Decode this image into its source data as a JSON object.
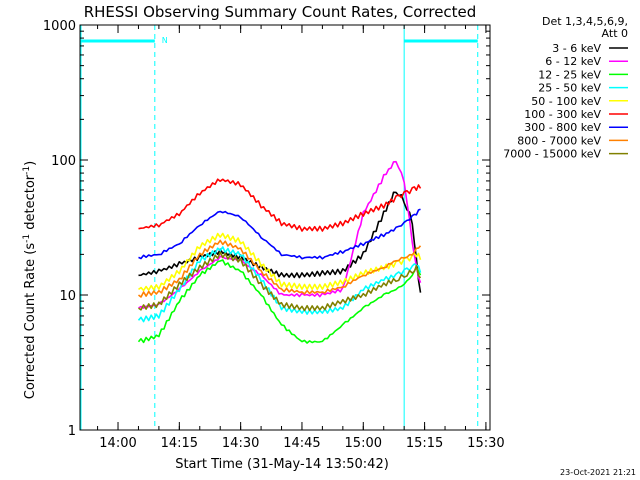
{
  "chart_data": {
    "type": "line",
    "title": "RHESSI Observing Summary Count Rates, Corrected",
    "xlabel": "Start Time (31-May-14 13:50:42)",
    "ylabel": "Corrected Count Rate (s⁻¹ detector⁻¹)",
    "yscale": "log",
    "ylim": [
      1,
      1000
    ],
    "xlim": [
      "13:50:42",
      "15:31:00"
    ],
    "x_ticks": [
      "14:00",
      "14:15",
      "14:30",
      "14:45",
      "15:00",
      "15:15",
      "15:30"
    ],
    "y_ticks": [
      "1",
      "10",
      "100",
      "1000"
    ],
    "legend_header": [
      "Det 1,3,4,5,6,9,",
      "Att 0"
    ],
    "legend_position": "right",
    "timestamp": "23-Oct-2021 21:21",
    "night_marker": "N",
    "night_bars": [
      [
        "13:50:42",
        "14:09:00"
      ],
      [
        "15:10:00",
        "15:28:00"
      ]
    ],
    "day_bounds": [
      "14:09:00",
      "15:10:00"
    ],
    "data_gaps_dashed": [
      "14:09:00",
      "15:28:00"
    ],
    "series": [
      {
        "name": "3 - 6 keV",
        "color": "#000000",
        "points": [
          [
            "14:05",
            14
          ],
          [
            "14:10",
            15
          ],
          [
            "14:15",
            17
          ],
          [
            "14:20",
            19
          ],
          [
            "14:25",
            21
          ],
          [
            "14:30",
            19
          ],
          [
            "14:35",
            16
          ],
          [
            "14:40",
            14
          ],
          [
            "14:45",
            14
          ],
          [
            "14:50",
            14.5
          ],
          [
            "14:55",
            15
          ],
          [
            "15:00",
            20
          ],
          [
            "15:05",
            40
          ],
          [
            "15:08",
            60
          ],
          [
            "15:10",
            50
          ],
          [
            "15:12",
            35
          ],
          [
            "15:13",
            18
          ],
          [
            "15:14",
            10
          ]
        ]
      },
      {
        "name": "6 - 12 keV",
        "color": "#ff00ff",
        "points": [
          [
            "14:05",
            8
          ],
          [
            "14:10",
            8.5
          ],
          [
            "14:15",
            11
          ],
          [
            "14:20",
            15
          ],
          [
            "14:25",
            19
          ],
          [
            "14:30",
            18
          ],
          [
            "14:35",
            14
          ],
          [
            "14:40",
            10
          ],
          [
            "14:45",
            10
          ],
          [
            "14:50",
            10
          ],
          [
            "14:55",
            11
          ],
          [
            "15:00",
            40
          ],
          [
            "15:05",
            75
          ],
          [
            "15:08",
            100
          ],
          [
            "15:10",
            70
          ],
          [
            "15:12",
            25
          ],
          [
            "15:13",
            16
          ],
          [
            "15:14",
            12
          ]
        ]
      },
      {
        "name": "12 - 25 keV",
        "color": "#00ff00",
        "points": [
          [
            "14:05",
            4.5
          ],
          [
            "14:10",
            5
          ],
          [
            "14:15",
            9
          ],
          [
            "14:20",
            14
          ],
          [
            "14:25",
            18
          ],
          [
            "14:30",
            15
          ],
          [
            "14:35",
            10
          ],
          [
            "14:40",
            6
          ],
          [
            "14:45",
            4.5
          ],
          [
            "14:50",
            4.5
          ],
          [
            "14:55",
            6
          ],
          [
            "15:00",
            8
          ],
          [
            "15:05",
            10
          ],
          [
            "15:08",
            11
          ],
          [
            "15:10",
            12
          ],
          [
            "15:12",
            14
          ],
          [
            "15:13",
            16
          ],
          [
            "15:14",
            14
          ]
        ]
      },
      {
        "name": "25 - 50 keV",
        "color": "#00ffff",
        "points": [
          [
            "14:05",
            6.5
          ],
          [
            "14:10",
            7
          ],
          [
            "14:15",
            11
          ],
          [
            "14:20",
            18
          ],
          [
            "14:25",
            22
          ],
          [
            "14:30",
            20
          ],
          [
            "14:35",
            13
          ],
          [
            "14:40",
            8
          ],
          [
            "14:45",
            7.5
          ],
          [
            "14:50",
            7.5
          ],
          [
            "14:55",
            8
          ],
          [
            "15:00",
            11
          ],
          [
            "15:05",
            13
          ],
          [
            "15:08",
            14
          ],
          [
            "15:10",
            15
          ],
          [
            "15:12",
            16
          ],
          [
            "15:13",
            17
          ],
          [
            "15:14",
            15
          ]
        ]
      },
      {
        "name": "50 - 100 keV",
        "color": "#ffff00",
        "points": [
          [
            "14:05",
            11
          ],
          [
            "14:10",
            11.5
          ],
          [
            "14:15",
            15
          ],
          [
            "14:20",
            23
          ],
          [
            "14:25",
            28
          ],
          [
            "14:30",
            25
          ],
          [
            "14:35",
            17
          ],
          [
            "14:40",
            12
          ],
          [
            "14:45",
            11.5
          ],
          [
            "14:50",
            11.5
          ],
          [
            "14:55",
            12.5
          ],
          [
            "15:00",
            14.5
          ],
          [
            "15:05",
            16
          ],
          [
            "15:08",
            17
          ],
          [
            "15:10",
            18
          ],
          [
            "15:12",
            19
          ],
          [
            "15:13",
            20
          ],
          [
            "15:14",
            19
          ]
        ]
      },
      {
        "name": "100 - 300 keV",
        "color": "#ff0000",
        "points": [
          [
            "14:05",
            31
          ],
          [
            "14:10",
            33
          ],
          [
            "14:15",
            40
          ],
          [
            "14:20",
            57
          ],
          [
            "14:25",
            72
          ],
          [
            "14:30",
            66
          ],
          [
            "14:35",
            46
          ],
          [
            "14:40",
            34
          ],
          [
            "14:45",
            31
          ],
          [
            "14:50",
            31
          ],
          [
            "14:55",
            34
          ],
          [
            "15:00",
            40
          ],
          [
            "15:05",
            46
          ],
          [
            "15:08",
            52
          ],
          [
            "15:10",
            56
          ],
          [
            "15:12",
            60
          ],
          [
            "15:13",
            62
          ],
          [
            "15:14",
            64
          ]
        ]
      },
      {
        "name": "300 - 800 keV",
        "color": "#0000ff",
        "points": [
          [
            "14:05",
            19
          ],
          [
            "14:10",
            20
          ],
          [
            "14:15",
            24
          ],
          [
            "14:20",
            33
          ],
          [
            "14:25",
            42
          ],
          [
            "14:30",
            38
          ],
          [
            "14:35",
            27
          ],
          [
            "14:40",
            20
          ],
          [
            "14:45",
            19
          ],
          [
            "14:50",
            19
          ],
          [
            "14:55",
            21
          ],
          [
            "15:00",
            24
          ],
          [
            "15:05",
            28
          ],
          [
            "15:08",
            31
          ],
          [
            "15:10",
            34
          ],
          [
            "15:12",
            38
          ],
          [
            "15:13",
            40
          ],
          [
            "15:14",
            44
          ]
        ]
      },
      {
        "name": "800 - 7000 keV",
        "color": "#ff8000",
        "points": [
          [
            "14:05",
            10
          ],
          [
            "14:10",
            10.5
          ],
          [
            "14:15",
            13
          ],
          [
            "14:20",
            20
          ],
          [
            "14:25",
            25
          ],
          [
            "14:30",
            22
          ],
          [
            "14:35",
            15
          ],
          [
            "14:40",
            11
          ],
          [
            "14:45",
            10.5
          ],
          [
            "14:50",
            10.5
          ],
          [
            "14:55",
            11.5
          ],
          [
            "15:00",
            14
          ],
          [
            "15:05",
            16
          ],
          [
            "15:08",
            18
          ],
          [
            "15:10",
            19
          ],
          [
            "15:12",
            20
          ],
          [
            "15:13",
            22
          ],
          [
            "15:14",
            23
          ]
        ]
      },
      {
        "name": "7000 - 15000 keV",
        "color": "#808000",
        "points": [
          [
            "14:05",
            8
          ],
          [
            "14:10",
            8.5
          ],
          [
            "14:15",
            12
          ],
          [
            "14:20",
            16
          ],
          [
            "14:25",
            20
          ],
          [
            "14:30",
            18
          ],
          [
            "14:35",
            12
          ],
          [
            "14:40",
            8.5
          ],
          [
            "14:45",
            8
          ],
          [
            "14:50",
            8
          ],
          [
            "14:55",
            9
          ],
          [
            "15:00",
            10
          ],
          [
            "15:05",
            12
          ],
          [
            "15:08",
            13
          ],
          [
            "15:10",
            14
          ],
          [
            "15:12",
            15
          ],
          [
            "15:13",
            16
          ],
          [
            "15:14",
            13
          ]
        ]
      }
    ]
  }
}
